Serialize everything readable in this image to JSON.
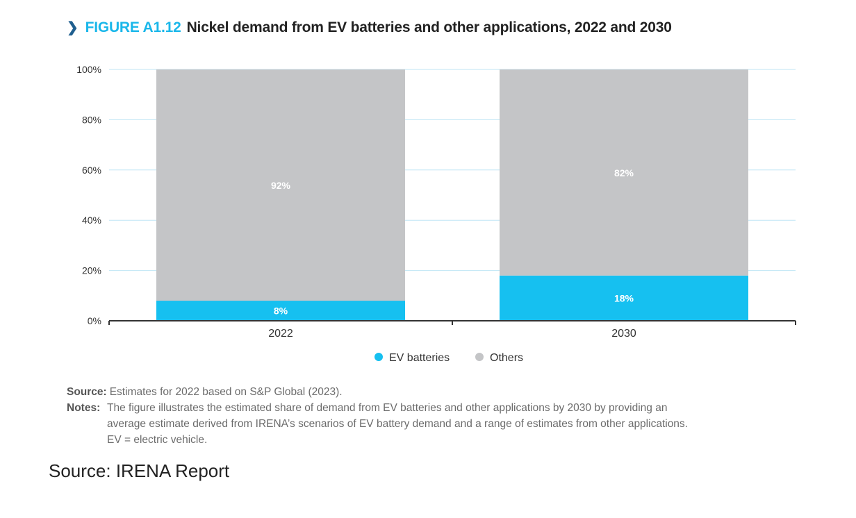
{
  "chart_data": {
    "type": "bar",
    "stacked": true,
    "figure_label": "FIGURE A1.12",
    "title": "Nickel demand from EV batteries and other applications, 2022 and 2030",
    "categories": [
      "2022",
      "2030"
    ],
    "series": [
      {
        "name": "EV batteries",
        "values": [
          8,
          18
        ],
        "labels": [
          "8%",
          "18%"
        ],
        "color": "#16c0f0"
      },
      {
        "name": "Others",
        "values": [
          92,
          82
        ],
        "labels": [
          "92%",
          "82%"
        ],
        "color": "#c4c5c7"
      }
    ],
    "ylim": [
      0,
      100
    ],
    "yticks": [
      "0%",
      "20%",
      "40%",
      "60%",
      "80%",
      "100%"
    ],
    "ytick_values": [
      0,
      20,
      40,
      60,
      80,
      100
    ],
    "xlabel": "",
    "ylabel": "",
    "grid": true,
    "legend": "bottom-center"
  },
  "notes": {
    "source_label": "Source:",
    "source_text": "Estimates for 2022 based on S&P Global (2023).",
    "notes_label": "Notes:",
    "notes_lines": [
      "The figure illustrates the estimated share of demand from EV batteries and other applications by 2030 by providing an",
      "average estimate derived from IRENA’s scenarios of EV battery demand and a range of estimates from other applications.",
      "EV = electric vehicle."
    ]
  },
  "caption": "Source: IRENA Report"
}
